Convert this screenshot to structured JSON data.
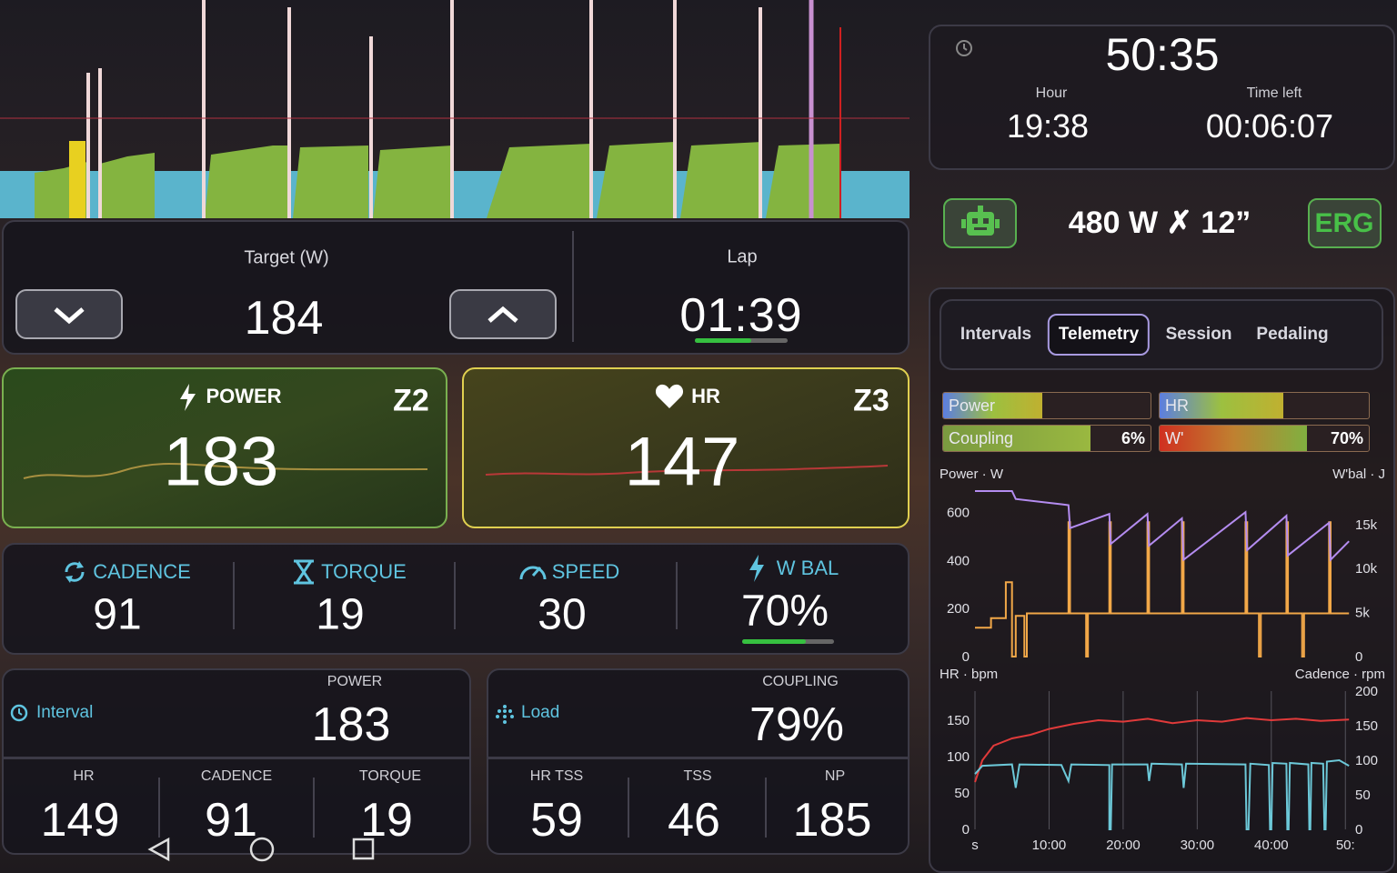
{
  "target": {
    "label": "Target (W)",
    "value": "184"
  },
  "lap": {
    "label": "Lap",
    "value": "01:39"
  },
  "power_card": {
    "label": "POWER",
    "zone": "Z2",
    "value": "183"
  },
  "hr_card": {
    "label": "HR",
    "zone": "Z3",
    "value": "147"
  },
  "metrics": [
    {
      "label": "CADENCE",
      "value": "91"
    },
    {
      "label": "TORQUE",
      "value": "19"
    },
    {
      "label": "SPEED",
      "value": "30"
    },
    {
      "label": "W BAL",
      "value": "70%"
    }
  ],
  "interval_panel": {
    "title": "Interval",
    "main_label": "POWER",
    "main_value": "183",
    "cells": [
      {
        "label": "HR",
        "value": "149"
      },
      {
        "label": "CADENCE",
        "value": "91"
      },
      {
        "label": "TORQUE",
        "value": "19"
      }
    ]
  },
  "load_panel": {
    "title": "Load",
    "main_label": "COUPLING",
    "main_value": "79%",
    "cells": [
      {
        "label": "HR TSS",
        "value": "59"
      },
      {
        "label": "TSS",
        "value": "46"
      },
      {
        "label": "NP",
        "value": "185"
      }
    ]
  },
  "clock": {
    "elapsed": "50:35",
    "hour_label": "Hour",
    "hour": "19:38",
    "time_left_label": "Time left",
    "time_left": "00:06:07"
  },
  "workout": {
    "step": "480 W ✗ 12”",
    "mode": "ERG"
  },
  "tabs": [
    "Intervals",
    "Telemetry",
    "Session",
    "Pedaling"
  ],
  "active_tab": 1,
  "bars": [
    {
      "label": "Power"
    },
    {
      "label": "HR"
    },
    {
      "label": "Coupling",
      "value": "6%"
    },
    {
      "label": "W'",
      "value": "70%"
    }
  ],
  "telemetry_charts": [
    {
      "type": "line",
      "y_label": "Power · W",
      "y2_label": "W'bal · J",
      "xlim": [
        0,
        3035
      ],
      "ylim": [
        0,
        690
      ],
      "yticks": [
        0,
        200,
        400,
        600
      ],
      "y2lim": [
        0,
        18800
      ],
      "y2ticks": [
        0,
        {
          "value": 5000,
          "label": "5k"
        },
        {
          "value": 10000,
          "label": "10k"
        },
        {
          "value": 15000,
          "label": "15k"
        }
      ],
      "series": [
        {
          "color": "#f2a848",
          "x": [
            0,
            130,
            130,
            250,
            250,
            300,
            300,
            330,
            330,
            400,
            400,
            420,
            420,
            757,
            757,
            770,
            770,
            900,
            900,
            915,
            915,
            1088,
            1088,
            1100,
            1100,
            1397,
            1397,
            1410,
            1410,
            1676,
            1676,
            1690,
            1690,
            2191,
            2191,
            2205,
            2205,
            2300,
            2300,
            2315,
            2315,
            2522,
            2522,
            2535,
            2535,
            2650,
            2650,
            2665,
            2665,
            2868,
            2868,
            2880,
            2880,
            3029
          ],
          "values": [
            120,
            120,
            160,
            160,
            310,
            310,
            0,
            0,
            170,
            170,
            0,
            0,
            180,
            180,
            560,
            560,
            180,
            180,
            0,
            0,
            180,
            180,
            560,
            560,
            180,
            180,
            560,
            560,
            180,
            180,
            560,
            560,
            180,
            180,
            560,
            560,
            180,
            180,
            0,
            0,
            180,
            180,
            560,
            560,
            180,
            180,
            0,
            0,
            180,
            180,
            560,
            560,
            180,
            180
          ]
        },
        {
          "color": "#b48cf0",
          "axis": "y2",
          "x": [
            0,
            300,
            330,
            700,
            757,
            770,
            1088,
            1100,
            1397,
            1410,
            1676,
            1690,
            2191,
            2205,
            2522,
            2535,
            2868,
            2880,
            3029
          ],
          "values": [
            18800,
            18800,
            17900,
            17300,
            17200,
            14600,
            16200,
            12800,
            16200,
            12600,
            15700,
            11000,
            16400,
            12100,
            16000,
            11500,
            15200,
            11000,
            13100
          ]
        }
      ]
    },
    {
      "type": "line",
      "y_label": "HR · bpm",
      "y2_label": "Cadence · rpm",
      "xlim": [
        0,
        3035
      ],
      "ylim": [
        0,
        190
      ],
      "yticks": [
        0,
        50,
        100,
        150
      ],
      "y2lim": [
        0,
        200
      ],
      "y2ticks": [
        0,
        50,
        100,
        150,
        200
      ],
      "xticks": [
        {
          "value": 0,
          "label": "s"
        },
        {
          "value": 600,
          "label": "10:00"
        },
        {
          "value": 1200,
          "label": "20:00"
        },
        {
          "value": 1800,
          "label": "30:00"
        },
        {
          "value": 2400,
          "label": "40:00"
        },
        {
          "value": 3000,
          "label": "50:"
        }
      ],
      "series": [
        {
          "color": "#e03a3a",
          "x": [
            0,
            60,
            150,
            300,
            450,
            600,
            800,
            1000,
            1200,
            1400,
            1600,
            1800,
            2000,
            2200,
            2400,
            2600,
            2800,
            3029
          ],
          "values": [
            65,
            95,
            115,
            125,
            130,
            138,
            145,
            150,
            148,
            152,
            146,
            150,
            148,
            153,
            150,
            152,
            149,
            151
          ]
        },
        {
          "color": "#6cc8d8",
          "axis": "y2",
          "x": [
            0,
            60,
            300,
            330,
            360,
            700,
            757,
            780,
            1088,
            1088,
            1100,
            1110,
            1397,
            1410,
            1430,
            1676,
            1690,
            1710,
            2191,
            2200,
            2215,
            2230,
            2380,
            2390,
            2400,
            2410,
            2522,
            2530,
            2540,
            2550,
            2700,
            2708,
            2716,
            2725,
            2820,
            2830,
            2840,
            2850,
            2950,
            3029
          ],
          "values": [
            80,
            92,
            94,
            60,
            94,
            93,
            70,
            94,
            93,
            0,
            0,
            94,
            94,
            70,
            95,
            94,
            60,
            95,
            94,
            0,
            0,
            95,
            93,
            0,
            0,
            96,
            95,
            0,
            0,
            96,
            94,
            0,
            0,
            96,
            95,
            0,
            0,
            98,
            100,
            92
          ]
        }
      ]
    }
  ]
}
